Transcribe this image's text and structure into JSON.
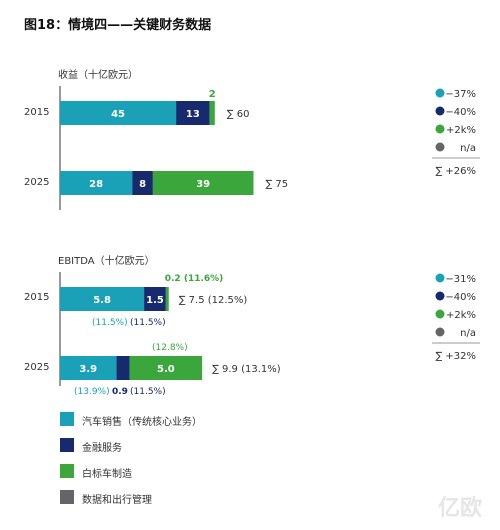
{
  "chart_data": [
    {
      "type": "bar",
      "stacked": true,
      "orientation": "horizontal",
      "title": "图18：情境四——关键财务数据",
      "subtitle": "收益（十亿欧元）",
      "categories": [
        "2015",
        "2025"
      ],
      "series": [
        {
          "name": "汽车销售（传统核心业务）",
          "color": "#1aa1b7",
          "values": [
            45,
            28
          ]
        },
        {
          "name": "金融服务",
          "color": "#172a6e",
          "values": [
            13,
            8
          ]
        },
        {
          "name": "白标车制造",
          "color": "#3aa63c",
          "values": [
            2,
            39
          ]
        },
        {
          "name": "数据和出行管理",
          "color": "#656569",
          "values": [
            0,
            0
          ]
        }
      ],
      "value_labels": [
        [
          "45",
          "13",
          "2",
          ""
        ],
        [
          "28",
          "8",
          "39",
          ""
        ]
      ],
      "totals": [
        "∑ 60",
        "∑ 75"
      ],
      "change_legend": [
        {
          "label": "−37%",
          "color": "#1aa1b7"
        },
        {
          "label": "−40%",
          "color": "#172a6e"
        },
        {
          "label": "+2k%",
          "color": "#3aa63c"
        },
        {
          "label": "n/a",
          "color": "#656569"
        }
      ],
      "total_change": "∑  +26%"
    },
    {
      "type": "bar",
      "stacked": true,
      "orientation": "horizontal",
      "subtitle": "EBITDA（十亿欧元）",
      "categories": [
        "2015",
        "2025"
      ],
      "series": [
        {
          "name": "汽车销售（传统核心业务）",
          "color": "#1aa1b7",
          "values": [
            5.8,
            3.9
          ]
        },
        {
          "name": "金融服务",
          "color": "#172a6e",
          "values": [
            1.5,
            0.9
          ]
        },
        {
          "name": "白标车制造",
          "color": "#3aa63c",
          "values": [
            0.2,
            5.0
          ]
        },
        {
          "name": "数据和出行管理",
          "color": "#656569",
          "values": [
            0,
            0
          ]
        }
      ],
      "inside_labels": [
        [
          "5.8",
          "1.5",
          "",
          ""
        ],
        [
          "3.9",
          "",
          "5.0",
          ""
        ]
      ],
      "margin_labels": {
        "2015": {
          "above": "0.2 (11.6%)",
          "below_left": "(11.5%)",
          "below_right": "(11.5%)"
        },
        "2025": {
          "above": "(12.8%)",
          "below_left": "(13.9%)",
          "below_right_value": "0.9",
          "below_right_pct": "(11.5%)"
        }
      },
      "totals": [
        "∑ 7.5 (12.5%)",
        "∑ 9.9 (13.1%)"
      ],
      "change_legend": [
        {
          "label": "−31%",
          "color": "#1aa1b7"
        },
        {
          "label": "−40%",
          "color": "#172a6e"
        },
        {
          "label": "+2k%",
          "color": "#3aa63c"
        },
        {
          "label": "n/a",
          "color": "#656569"
        }
      ],
      "total_change": "∑  +32%"
    }
  ],
  "legend": [
    {
      "label": "汽车销售（传统核心业务）",
      "color": "#1aa1b7"
    },
    {
      "label": "金融服务",
      "color": "#172a6e"
    },
    {
      "label": "白标车制造",
      "color": "#3aa63c"
    },
    {
      "label": "数据和出行管理",
      "color": "#656569"
    }
  ],
  "watermark": "亿欧"
}
